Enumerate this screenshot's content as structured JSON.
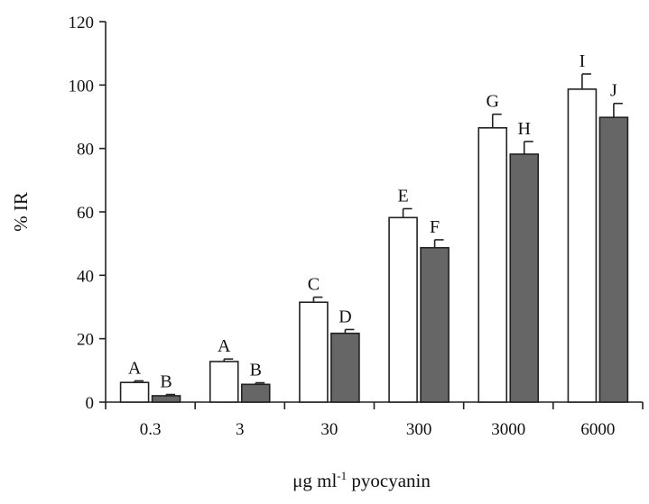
{
  "chart_data": {
    "type": "bar",
    "xlabel": "μg ml-1 pyocyanin",
    "xlabel_parts": {
      "prefix": "μg ml",
      "superscript": "-1",
      "suffix": " pyocyanin"
    },
    "ylabel": "% IR",
    "ylim": [
      0,
      120
    ],
    "yticks": [
      "0",
      "20",
      "40",
      "60",
      "80",
      "100",
      "120"
    ],
    "categories": [
      "0.3",
      "3",
      "30",
      "300",
      "3000",
      "6000"
    ],
    "series": [
      {
        "color": "#ffffff",
        "values": [
          6.2,
          12.8,
          31.5,
          58.2,
          86.5,
          98.7
        ],
        "errors": [
          0.5,
          0.8,
          1.6,
          2.8,
          4.3,
          4.8
        ],
        "labels": [
          "A",
          "A",
          "C",
          "E",
          "G",
          "I"
        ]
      },
      {
        "color": "#666666",
        "values": [
          2.0,
          5.6,
          21.7,
          48.7,
          78.2,
          89.8
        ],
        "errors": [
          0.4,
          0.5,
          1.2,
          2.5,
          4.0,
          4.4
        ],
        "labels": [
          "B",
          "B",
          "D",
          "F",
          "H",
          "J"
        ]
      }
    ],
    "grid": false,
    "legend": "none"
  }
}
